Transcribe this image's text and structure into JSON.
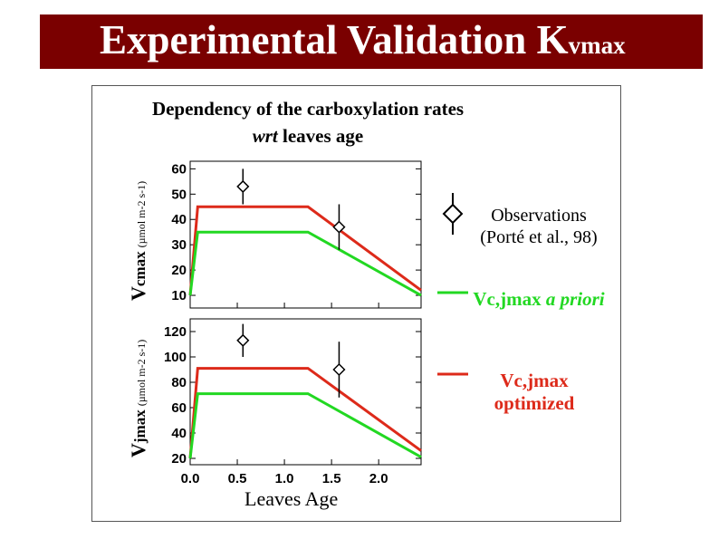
{
  "title": {
    "main": "Experimental Validation K",
    "subscript": "vmax"
  },
  "subtitle": {
    "line1": "Dependency of the carboxylation rates",
    "line2_italic": "wrt",
    "line2_rest": " leaves age"
  },
  "axes": {
    "top_ylabel": {
      "main": "V",
      "sub": "cmax",
      "unit": "(µmol m-2 s-1)"
    },
    "bottom_ylabel": {
      "main": "V",
      "sub": "jmax",
      "unit": "(µmol m-2 s-1)"
    },
    "xlabel": "Leaves Age"
  },
  "legend": {
    "observations": {
      "line1": "Observations",
      "line2": "(Porté et al., 98)"
    },
    "apriori": {
      "text_plain": "Vc,jmax ",
      "text_italic": "a priori",
      "color": "#22d822"
    },
    "optimized": {
      "text_line1": "Vc,jmax",
      "text_line2": "optimized",
      "color": "#dd2a1a"
    }
  },
  "chart_data": [
    {
      "type": "line",
      "xlim": [
        0,
        2.45
      ],
      "ylim": [
        5,
        63
      ],
      "xticks": [],
      "yticks": [
        10,
        20,
        30,
        40,
        50,
        60
      ],
      "series": [
        {
          "color": "#dd2a1a",
          "x": [
            0,
            0.08,
            1.25,
            2.45
          ],
          "y": [
            10,
            45,
            45,
            12
          ]
        },
        {
          "color": "#22d822",
          "x": [
            0,
            0.08,
            1.25,
            2.45
          ],
          "y": [
            10,
            35,
            35,
            10
          ]
        }
      ],
      "observations": [
        {
          "x": 0.56,
          "y": 53,
          "err": 7
        },
        {
          "x": 1.58,
          "y": 37,
          "err": 9
        }
      ]
    },
    {
      "type": "line",
      "xlim": [
        0,
        2.45
      ],
      "ylim": [
        15,
        130
      ],
      "xticks": [
        "0.0",
        "0.5",
        "1.0",
        "1.5",
        "2.0"
      ],
      "yticks": [
        20,
        40,
        60,
        80,
        100,
        120
      ],
      "series": [
        {
          "color": "#dd2a1a",
          "x": [
            0,
            0.08,
            1.25,
            2.45
          ],
          "y": [
            20,
            91,
            91,
            26
          ]
        },
        {
          "color": "#22d822",
          "x": [
            0,
            0.08,
            1.25,
            2.45
          ],
          "y": [
            20,
            71,
            71,
            21
          ]
        }
      ],
      "observations": [
        {
          "x": 0.56,
          "y": 113,
          "err": 13
        },
        {
          "x": 1.58,
          "y": 90,
          "err": 22
        }
      ]
    }
  ]
}
